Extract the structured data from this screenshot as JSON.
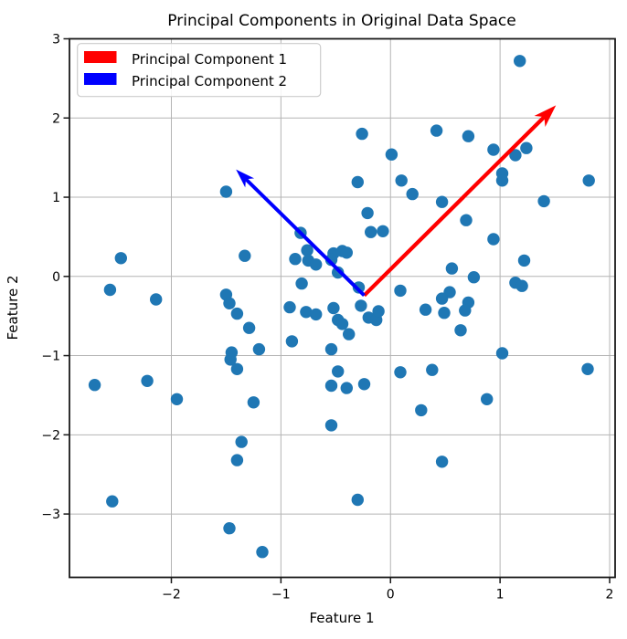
{
  "chart_data": {
    "type": "scatter",
    "title": "Principal Components in Original Data Space",
    "xlabel": "Feature 1",
    "ylabel": "Feature 2",
    "xlim": [
      -2.93,
      2.05
    ],
    "ylim": [
      -3.8,
      3.0
    ],
    "xticks": [
      -2,
      -1,
      0,
      1,
      2
    ],
    "yticks": [
      -3,
      -2,
      -1,
      0,
      1,
      2,
      3
    ],
    "grid": true,
    "legend_position": "upper left",
    "background": "#ffffff",
    "grid_color": "#b4b4b4",
    "axis_color": "#1a1a1a",
    "point_color": "#1f77b4",
    "legend": [
      {
        "label": "Principal Component 1",
        "color": "#ff0000"
      },
      {
        "label": "Principal Component 2",
        "color": "#0000ff"
      }
    ],
    "arrows": [
      {
        "name": "Principal Component 1",
        "color": "#ff0000",
        "tail": [
          -0.24,
          -0.24
        ],
        "tip": [
          1.51,
          2.16
        ]
      },
      {
        "name": "Principal Component 2",
        "color": "#0000ff",
        "tail": [
          -0.24,
          -0.24
        ],
        "tip": [
          -1.41,
          1.35
        ]
      }
    ],
    "points": [
      [
        -1.5,
        1.07
      ],
      [
        -0.26,
        1.8
      ],
      [
        0.01,
        1.54
      ],
      [
        -0.3,
        1.19
      ],
      [
        0.1,
        1.21
      ],
      [
        0.2,
        1.04
      ],
      [
        -0.21,
        0.8
      ],
      [
        0.42,
        1.84
      ],
      [
        1.18,
        2.72
      ],
      [
        0.71,
        1.77
      ],
      [
        0.94,
        1.6
      ],
      [
        1.14,
        1.53
      ],
      [
        1.24,
        1.62
      ],
      [
        1.02,
        1.3
      ],
      [
        1.02,
        1.21
      ],
      [
        1.81,
        1.21
      ],
      [
        1.4,
        0.95
      ],
      [
        0.47,
        0.94
      ],
      [
        0.69,
        0.71
      ],
      [
        -2.46,
        0.23
      ],
      [
        -2.56,
        -0.17
      ],
      [
        -2.14,
        -0.29
      ],
      [
        -1.5,
        -0.23
      ],
      [
        -1.47,
        -0.34
      ],
      [
        -1.4,
        -0.47
      ],
      [
        -1.29,
        -0.65
      ],
      [
        -1.45,
        -0.96
      ],
      [
        -1.46,
        -1.05
      ],
      [
        -1.4,
        -1.17
      ],
      [
        -2.7,
        -1.37
      ],
      [
        -2.22,
        -1.32
      ],
      [
        -1.95,
        -1.55
      ],
      [
        -1.33,
        0.26
      ],
      [
        -0.18,
        0.56
      ],
      [
        -0.07,
        0.57
      ],
      [
        -0.82,
        0.55
      ],
      [
        -0.87,
        0.22
      ],
      [
        -0.76,
        0.33
      ],
      [
        -0.75,
        0.2
      ],
      [
        -0.68,
        0.15
      ],
      [
        -0.52,
        0.29
      ],
      [
        -0.44,
        0.32
      ],
      [
        -0.4,
        0.3
      ],
      [
        -0.54,
        0.21
      ],
      [
        -0.48,
        0.05
      ],
      [
        -0.81,
        -0.09
      ],
      [
        -0.29,
        -0.14
      ],
      [
        -0.27,
        -0.37
      ],
      [
        -0.92,
        -0.39
      ],
      [
        -0.77,
        -0.45
      ],
      [
        -0.68,
        -0.48
      ],
      [
        -0.52,
        -0.4
      ],
      [
        -0.48,
        -0.55
      ],
      [
        -0.44,
        -0.6
      ],
      [
        -0.2,
        -0.52
      ],
      [
        -0.13,
        -0.55
      ],
      [
        -0.11,
        -0.44
      ],
      [
        -0.38,
        -0.73
      ],
      [
        -0.9,
        -0.82
      ],
      [
        -0.54,
        -0.92
      ],
      [
        -1.2,
        -0.92
      ],
      [
        0.09,
        -0.18
      ],
      [
        0.32,
        -0.42
      ],
      [
        -0.48,
        -1.2
      ],
      [
        -0.54,
        -1.38
      ],
      [
        -0.4,
        -1.41
      ],
      [
        -0.24,
        -1.36
      ],
      [
        0.09,
        -1.21
      ],
      [
        0.38,
        -1.18
      ],
      [
        0.94,
        0.47
      ],
      [
        1.22,
        0.2
      ],
      [
        0.56,
        0.1
      ],
      [
        0.76,
        -0.01
      ],
      [
        1.14,
        -0.08
      ],
      [
        1.2,
        -0.12
      ],
      [
        0.54,
        -0.2
      ],
      [
        0.47,
        -0.28
      ],
      [
        0.49,
        -0.46
      ],
      [
        0.71,
        -0.33
      ],
      [
        0.68,
        -0.43
      ],
      [
        0.64,
        -0.68
      ],
      [
        1.02,
        -0.97
      ],
      [
        1.8,
        -1.17
      ],
      [
        -2.54,
        -2.84
      ],
      [
        -1.36,
        -2.09
      ],
      [
        -1.4,
        -2.32
      ],
      [
        -1.47,
        -3.18
      ],
      [
        -1.25,
        -1.59
      ],
      [
        -0.54,
        -1.88
      ],
      [
        0.28,
        -1.69
      ],
      [
        -0.3,
        -2.82
      ],
      [
        -1.17,
        -3.48
      ],
      [
        0.88,
        -1.55
      ],
      [
        0.47,
        -2.34
      ]
    ]
  }
}
